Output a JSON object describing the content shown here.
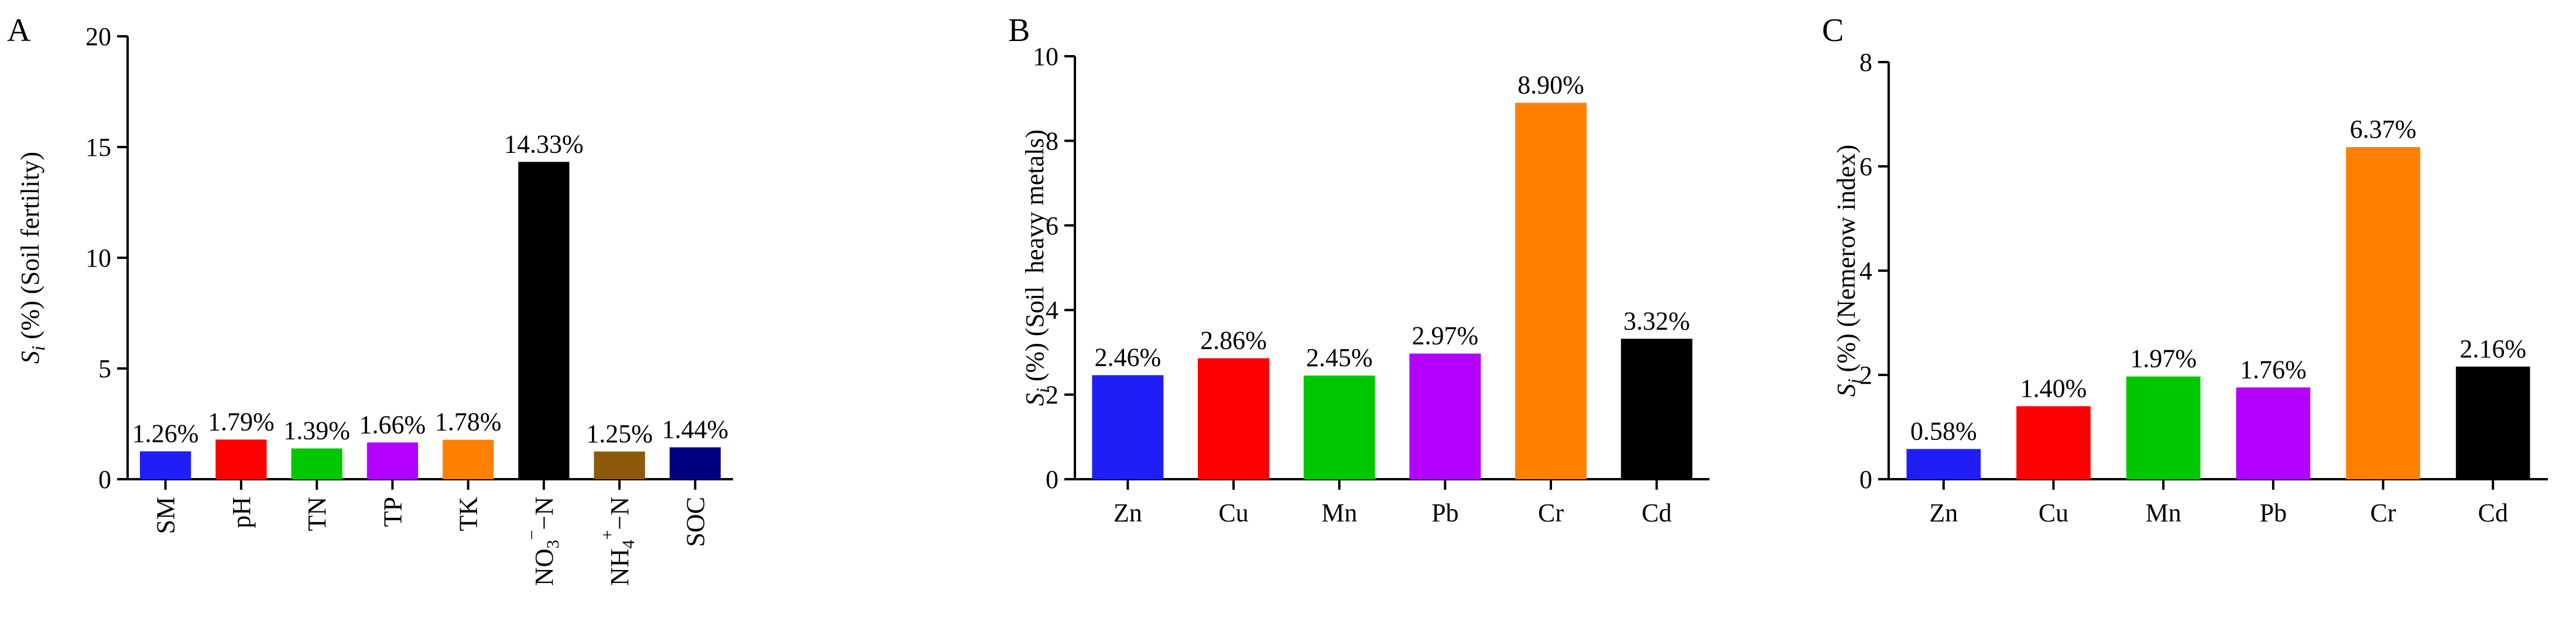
{
  "chart_data": [
    {
      "panel": "A",
      "type": "bar",
      "ylabel": {
        "symbol": "S",
        "subscript": "i",
        "text": " (%) (Soil fertility)"
      },
      "ylim": [
        0,
        20
      ],
      "yticks": [
        "0",
        "5",
        "10",
        "15",
        "20"
      ],
      "categories": [
        {
          "text": "SM"
        },
        {
          "text": "pH"
        },
        {
          "text": "TN"
        },
        {
          "text": "TP"
        },
        {
          "text": "TK"
        },
        {
          "parts": [
            {
              "t": "NO"
            },
            {
              "t": "3",
              "sub": true
            },
            {
              "t": "−",
              "sup": true
            },
            {
              "t": "−N"
            }
          ]
        },
        {
          "parts": [
            {
              "t": "NH"
            },
            {
              "t": "4",
              "sub": true
            },
            {
              "t": "+",
              "sup": true
            },
            {
              "t": "−N"
            }
          ]
        },
        {
          "text": "SOC"
        }
      ],
      "values": [
        1.26,
        1.79,
        1.39,
        1.66,
        1.78,
        14.33,
        1.25,
        1.44
      ],
      "data_labels": [
        "1.26%",
        "1.79%",
        "1.39%",
        "1.66%",
        "1.78%",
        "14.33%",
        "1.25%",
        "1.44%"
      ],
      "colors": [
        "#1f1ff5",
        "#ff0000",
        "#00c800",
        "#b300ff",
        "#ff8000",
        "#000000",
        "#8b5a0b",
        "#000080"
      ]
    },
    {
      "panel": "B",
      "type": "bar",
      "ylabel": {
        "symbol": "S",
        "subscript": "i",
        "text": " (%) (Soil  heavy metals)"
      },
      "ylim": [
        0,
        10
      ],
      "yticks": [
        "0",
        "2",
        "4",
        "6",
        "8",
        "10"
      ],
      "categories": [
        {
          "text": "Zn"
        },
        {
          "text": "Cu"
        },
        {
          "text": "Mn"
        },
        {
          "text": "Pb"
        },
        {
          "text": "Cr"
        },
        {
          "text": "Cd"
        }
      ],
      "values": [
        2.46,
        2.86,
        2.45,
        2.97,
        8.9,
        3.32
      ],
      "data_labels": [
        "2.46%",
        "2.86%",
        "2.45%",
        "2.97%",
        "8.90%",
        "3.32%"
      ],
      "colors": [
        "#1f1ff5",
        "#ff0000",
        "#00c800",
        "#b300ff",
        "#ff8000",
        "#000000"
      ]
    },
    {
      "panel": "C",
      "type": "bar",
      "ylabel": {
        "symbol": "S",
        "subscript": "i",
        "text": " (%) (Nemerow index)"
      },
      "ylim": [
        0,
        8
      ],
      "yticks": [
        "0",
        "2",
        "4",
        "6",
        "8"
      ],
      "categories": [
        {
          "text": "Zn"
        },
        {
          "text": "Cu"
        },
        {
          "text": "Mn"
        },
        {
          "text": "Pb"
        },
        {
          "text": "Cr"
        },
        {
          "text": "Cd"
        }
      ],
      "values": [
        0.58,
        1.4,
        1.97,
        1.76,
        6.37,
        2.16
      ],
      "data_labels": [
        "0.58%",
        "1.40%",
        "1.97%",
        "1.76%",
        "6.37%",
        "2.16%"
      ],
      "colors": [
        "#1f1ff5",
        "#ff0000",
        "#00c800",
        "#b300ff",
        "#ff8000",
        "#000000"
      ]
    }
  ]
}
